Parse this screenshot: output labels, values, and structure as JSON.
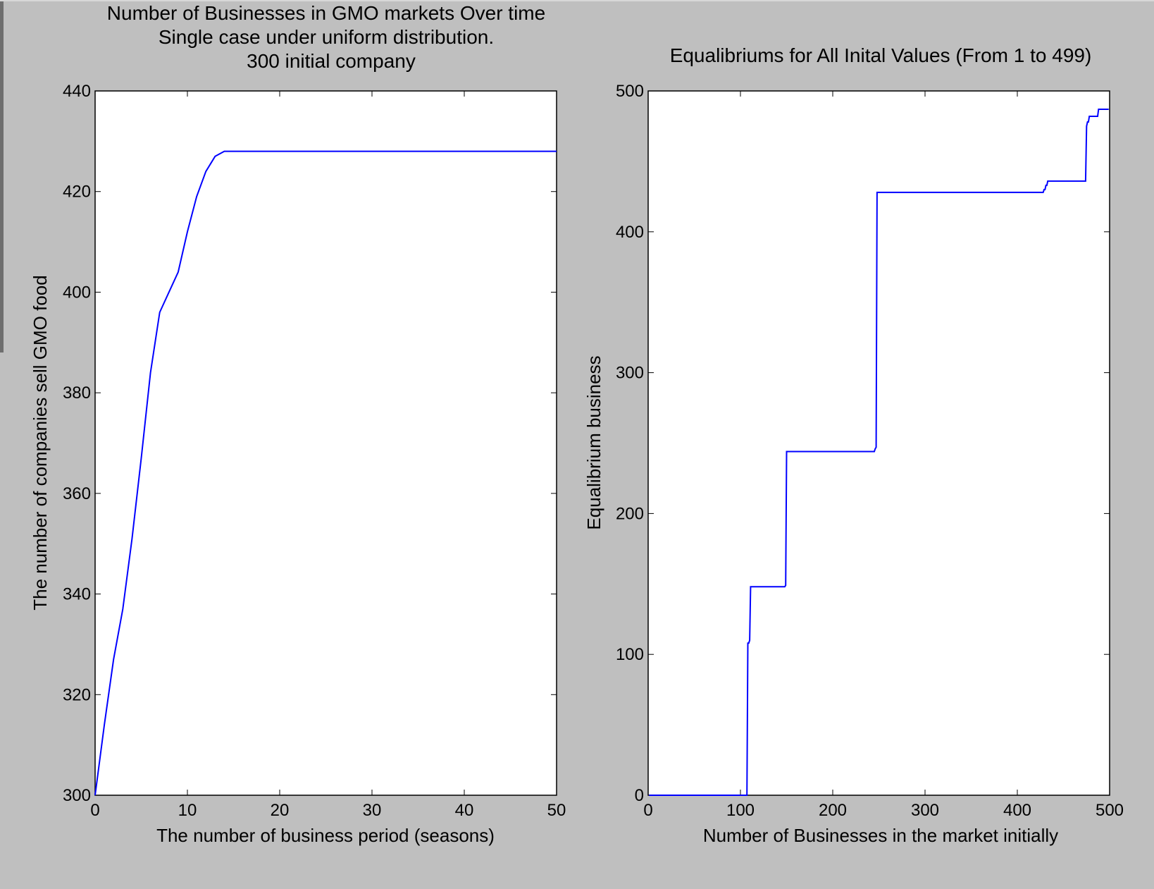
{
  "chart_data": [
    {
      "type": "line",
      "title_lines": [
        "Number of Businesses in GMO markets Over time",
        "Single case under uniform distribution.",
        "300 initial company"
      ],
      "xlabel": "The number of business period (seasons)",
      "ylabel": "The number of companies sell GMO food",
      "xlim": [
        0,
        50
      ],
      "ylim": [
        300,
        440
      ],
      "xticks": [
        0,
        10,
        20,
        30,
        40,
        50
      ],
      "yticks": [
        300,
        320,
        340,
        360,
        380,
        400,
        420,
        440
      ],
      "grid": false,
      "color": "#0000ff",
      "x": [
        0,
        1,
        2,
        3,
        4,
        5,
        6,
        7,
        8,
        9,
        10,
        11,
        12,
        13,
        14,
        15,
        20,
        30,
        40,
        50
      ],
      "y": [
        300,
        314,
        327,
        337,
        351,
        367,
        384,
        396,
        400,
        404,
        412,
        419,
        424,
        427,
        428,
        428,
        428,
        428,
        428,
        428
      ]
    },
    {
      "type": "line",
      "title_lines": [
        "Equalibriums for All Inital Values (From 1 to 499)"
      ],
      "xlabel": "Number of Businesses in the market initially",
      "ylabel": "Equalibrium business",
      "xlim": [
        0,
        500
      ],
      "ylim": [
        0,
        500
      ],
      "xticks": [
        0,
        100,
        200,
        300,
        400,
        500
      ],
      "yticks": [
        0,
        100,
        200,
        300,
        400,
        500
      ],
      "grid": false,
      "color": "#0000ff",
      "x": [
        1,
        107,
        108,
        109,
        110,
        111,
        147,
        148,
        149,
        150,
        245,
        246,
        247,
        248,
        249,
        428,
        429,
        430,
        431,
        432,
        433,
        434,
        474,
        475,
        476,
        477,
        478,
        479,
        480,
        481,
        487,
        488,
        489,
        499
      ],
      "y": [
        0,
        0,
        108,
        108,
        110,
        148,
        148,
        148,
        149,
        244,
        244,
        246,
        247,
        428,
        428,
        428,
        430,
        430,
        433,
        433,
        436,
        436,
        436,
        475,
        478,
        478,
        482,
        482,
        482,
        482,
        482,
        487,
        487,
        487
      ]
    }
  ]
}
